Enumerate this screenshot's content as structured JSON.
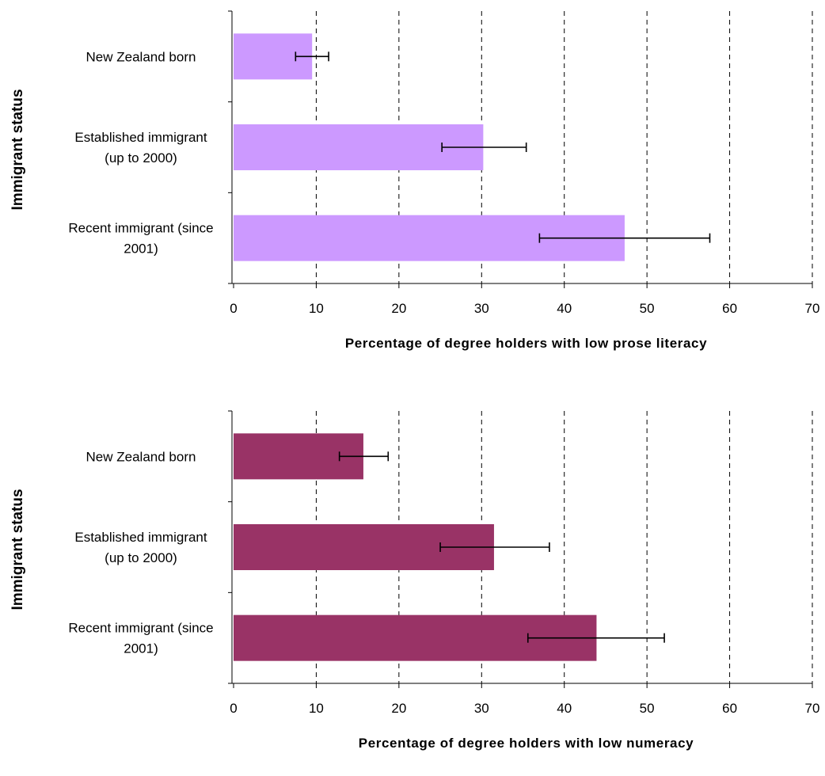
{
  "chart_data": [
    {
      "type": "bar",
      "orientation": "horizontal",
      "categories": [
        [
          "New  Zealand born"
        ],
        [
          "Established immigrant",
          "(up to 2000)"
        ],
        [
          "Recent immigrant (since",
          "2001)"
        ]
      ],
      "values": [
        9.5,
        30.2,
        47.3
      ],
      "error_low": [
        7.5,
        25.2,
        37.0
      ],
      "error_high": [
        11.5,
        35.4,
        57.6
      ],
      "xlabel": "Percentage of degree holders with low prose literacy",
      "ylabel": "Immigrant status",
      "xlim": [
        0,
        70
      ],
      "xticks": [
        "0",
        "10",
        "20",
        "30",
        "40",
        "50",
        "60",
        "70"
      ],
      "grid": "vertical dashed",
      "bar_color": "#cc99ff"
    },
    {
      "type": "bar",
      "orientation": "horizontal",
      "categories": [
        [
          "New  Zealand born"
        ],
        [
          "Established immigrant",
          "(up to 2000)"
        ],
        [
          "Recent immigrant (since",
          "2001)"
        ]
      ],
      "values": [
        15.7,
        31.5,
        43.9
      ],
      "error_low": [
        12.8,
        25.0,
        35.6
      ],
      "error_high": [
        18.7,
        38.2,
        52.1
      ],
      "xlabel": "Percentage of degree holders with low numeracy",
      "ylabel": "Immigrant status",
      "xlim": [
        0,
        70
      ],
      "xticks": [
        "0",
        "10",
        "20",
        "30",
        "40",
        "50",
        "60",
        "70"
      ],
      "grid": "vertical dashed",
      "bar_color": "#993366"
    }
  ]
}
